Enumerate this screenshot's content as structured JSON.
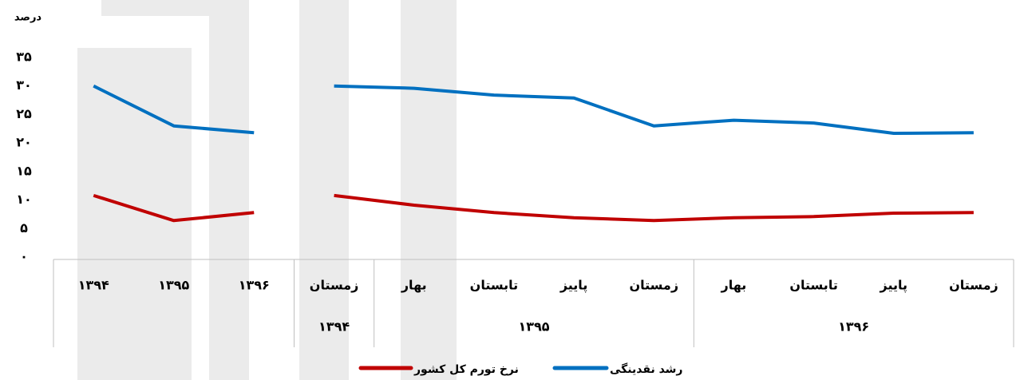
{
  "chart_data": {
    "type": "line",
    "y_label": "درصد",
    "ylim": [
      0,
      35
    ],
    "yticks": [
      {
        "value": 0,
        "label": "۰"
      },
      {
        "value": 5,
        "label": "۵"
      },
      {
        "value": 10,
        "label": "۱۰"
      },
      {
        "value": 15,
        "label": "۱۵"
      },
      {
        "value": 20,
        "label": "۲۰"
      },
      {
        "value": 25,
        "label": "۲۵"
      },
      {
        "value": 30,
        "label": "۳۰"
      },
      {
        "value": 35,
        "label": "۳۵"
      }
    ],
    "series": [
      {
        "name": "رشد نقدینگی",
        "color": "#0070c0"
      },
      {
        "name": "نرخ تورم کل کشور",
        "color": "#c00000"
      }
    ],
    "panels": [
      {
        "categories": [
          "۱۳۹۴",
          "۱۳۹۵",
          "۱۳۹۶"
        ],
        "values": [
          [
            30,
            23,
            21.8
          ],
          [
            10.8,
            6.4,
            7.8
          ]
        ]
      },
      {
        "groups": [
          {
            "label": "۱۳۹۴",
            "categories": [
              "زمستان"
            ]
          },
          {
            "label": "۱۳۹۵",
            "categories": [
              "بهار",
              "تابستان",
              "پاییز",
              "زمستان"
            ]
          },
          {
            "label": "۱۳۹۶",
            "categories": [
              "بهار",
              "تابستان",
              "پاییز",
              "زمستان"
            ]
          }
        ],
        "values": [
          [
            30,
            29.6,
            28.4,
            27.9,
            23,
            24,
            23.5,
            21.7,
            21.8
          ],
          [
            10.8,
            9.1,
            7.8,
            6.9,
            6.4,
            6.9,
            7.1,
            7.7,
            7.8
          ]
        ]
      }
    ]
  }
}
